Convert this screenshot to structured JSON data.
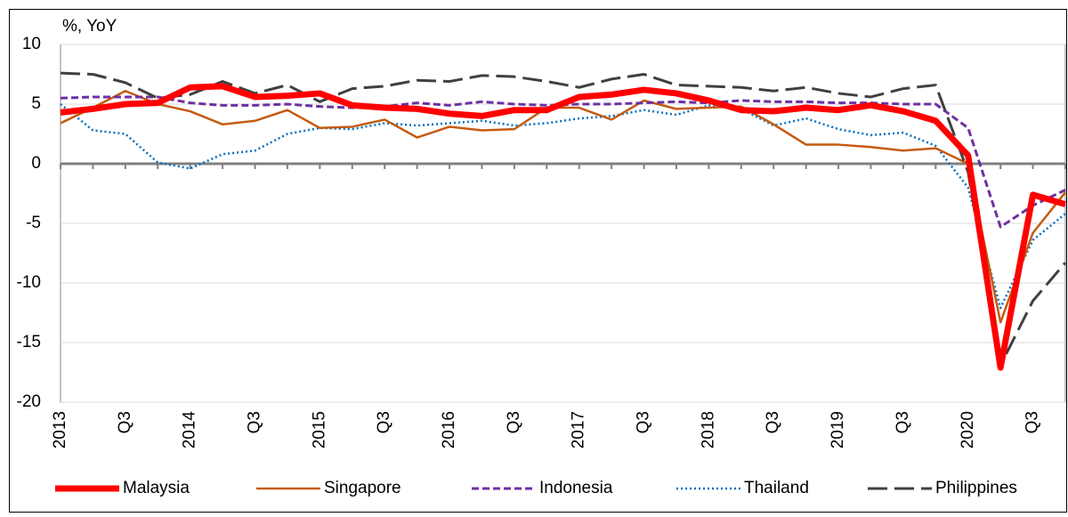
{
  "chart_data": {
    "type": "line",
    "y_label": "%, YoY",
    "categories": [
      "2013",
      null,
      "Q3",
      null,
      "2014",
      null,
      "Q3",
      null,
      "2015",
      null,
      "Q3",
      null,
      "2016",
      null,
      "Q3",
      null,
      "2017",
      null,
      "Q3",
      null,
      "2018",
      null,
      "Q3",
      null,
      "2019",
      null,
      "Q3",
      null,
      "2020",
      null,
      "Q3",
      null
    ],
    "ylim": [
      -20,
      10
    ],
    "yticks": [
      -20,
      -15,
      -10,
      -5,
      0,
      5,
      10
    ],
    "grid": true,
    "legend": "bottom",
    "series": [
      {
        "name": "Malaysia",
        "color": "#ff0000",
        "values": [
          4.3,
          4.6,
          5.0,
          5.1,
          6.4,
          6.5,
          5.6,
          5.7,
          5.9,
          4.9,
          4.7,
          4.6,
          4.2,
          4.0,
          4.5,
          4.5,
          5.6,
          5.8,
          6.2,
          5.9,
          5.3,
          4.5,
          4.4,
          4.7,
          4.5,
          4.9,
          4.4,
          3.6,
          0.7,
          -17.1,
          -2.6,
          -3.4
        ]
      },
      {
        "name": "Singapore",
        "color": "#c55a11",
        "values": [
          3.4,
          4.7,
          6.1,
          5.0,
          4.4,
          3.3,
          3.6,
          4.5,
          3.0,
          3.1,
          3.7,
          2.2,
          3.1,
          2.8,
          2.9,
          4.7,
          4.7,
          3.7,
          5.3,
          4.6,
          4.7,
          4.8,
          3.3,
          1.6,
          1.6,
          1.4,
          1.1,
          1.3,
          0.0,
          -13.3,
          -5.8,
          -2.4
        ]
      },
      {
        "name": "Indonesia",
        "color": "#7030a0",
        "values": [
          5.5,
          5.6,
          5.6,
          5.6,
          5.1,
          4.9,
          4.9,
          5.0,
          4.8,
          4.7,
          4.8,
          5.1,
          4.9,
          5.2,
          5.0,
          4.9,
          5.0,
          5.0,
          5.1,
          5.2,
          5.1,
          5.3,
          5.2,
          5.2,
          5.1,
          5.1,
          5.0,
          5.0,
          3.0,
          -5.3,
          -3.5,
          -2.2
        ]
      },
      {
        "name": "Thailand",
        "color": "#0070c0",
        "values": [
          5.0,
          2.8,
          2.5,
          0.1,
          -0.4,
          0.8,
          1.1,
          2.5,
          3.0,
          2.9,
          3.4,
          3.2,
          3.4,
          3.6,
          3.2,
          3.4,
          3.8,
          4.0,
          4.5,
          4.1,
          4.9,
          4.6,
          3.2,
          3.8,
          2.9,
          2.4,
          2.6,
          1.5,
          -2.0,
          -12.1,
          -6.4,
          -4.2
        ]
      },
      {
        "name": "Philippines",
        "color": "#404040",
        "values": [
          7.6,
          7.5,
          6.8,
          5.5,
          5.8,
          6.9,
          5.9,
          6.6,
          5.2,
          6.3,
          6.5,
          7.0,
          6.9,
          7.4,
          7.3,
          6.9,
          6.4,
          7.1,
          7.5,
          6.6,
          6.5,
          6.4,
          6.1,
          6.4,
          5.9,
          5.6,
          6.3,
          6.6,
          -0.7,
          -16.9,
          -11.5,
          -8.3
        ]
      }
    ]
  }
}
